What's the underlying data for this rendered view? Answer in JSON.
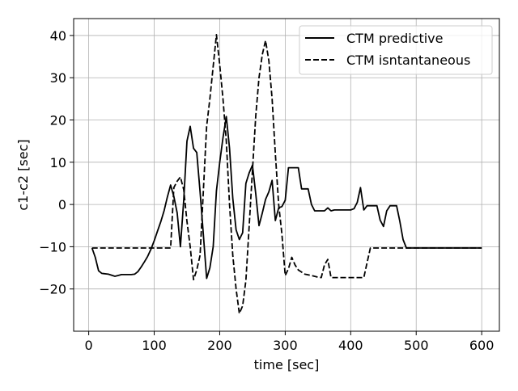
{
  "chart_data": {
    "type": "line",
    "title": "",
    "xlabel": "time [sec]",
    "ylabel": "c1-c2 [sec]",
    "xlim": [
      -23,
      627
    ],
    "ylim": [
      -30,
      44
    ],
    "xticks": [
      0,
      100,
      200,
      300,
      400,
      500,
      600
    ],
    "yticks": [
      -20,
      -10,
      0,
      10,
      20,
      30,
      40
    ],
    "xtick_labels": [
      "0",
      "100",
      "200",
      "300",
      "400",
      "500",
      "600"
    ],
    "ytick_labels": [
      "−20",
      "−10",
      "0",
      "10",
      "20",
      "30",
      "40"
    ],
    "grid": true,
    "legend_position": "top-right",
    "series": [
      {
        "name": "CTM predictive",
        "style": "solid",
        "color": "#000000",
        "x": [
          5,
          10,
          15,
          20,
          30,
          40,
          45,
          50,
          55,
          60,
          65,
          70,
          75,
          80,
          85,
          90,
          95,
          100,
          105,
          110,
          115,
          120,
          125,
          130,
          135,
          140,
          145,
          150,
          155,
          160,
          165,
          170,
          175,
          180,
          185,
          190,
          195,
          200,
          205,
          210,
          215,
          220,
          225,
          230,
          235,
          240,
          245,
          250,
          255,
          260,
          265,
          270,
          275,
          280,
          285,
          290,
          295,
          300,
          305,
          310,
          315,
          320,
          325,
          330,
          335,
          340,
          345,
          350,
          355,
          360,
          365,
          370,
          375,
          380,
          385,
          390,
          395,
          400,
          405,
          410,
          415,
          420,
          425,
          430,
          435,
          440,
          445,
          450,
          455,
          460,
          465,
          470,
          475,
          480,
          485,
          490,
          495,
          500,
          550,
          600
        ],
        "y": [
          -10.3,
          -12.5,
          -15.7,
          -16.3,
          -16.5,
          -17,
          -16.8,
          -16.6,
          -16.6,
          -16.6,
          -16.6,
          -16.5,
          -15.9,
          -14.8,
          -13.6,
          -12.3,
          -10.6,
          -8.6,
          -6.3,
          -4.1,
          -1.5,
          1.7,
          4.6,
          1.9,
          -2,
          -10,
          1,
          15,
          18.5,
          13.3,
          12.3,
          3,
          -7,
          -17.5,
          -15,
          -10,
          3.2,
          10,
          15.8,
          20.8,
          13.3,
          1.5,
          -6,
          -8.3,
          -6.7,
          5,
          7.5,
          9.3,
          2.5,
          -5,
          -2,
          1.2,
          3,
          5.7,
          -3.8,
          -0.8,
          -0.5,
          1,
          8.7,
          8.7,
          8.7,
          8.7,
          3.7,
          3.7,
          3.7,
          0,
          -1.5,
          -1.5,
          -1.5,
          -1.5,
          -0.8,
          -1.5,
          -1.3,
          -1.3,
          -1.3,
          -1.3,
          -1.3,
          -1.3,
          -1,
          0.5,
          4,
          -1.3,
          -0.3,
          -0.3,
          -0.3,
          -0.3,
          -3.7,
          -5.2,
          -1.5,
          -0.3,
          -0.3,
          -0.3,
          -4,
          -8.3,
          -10.3,
          -10.3,
          -10.3,
          -10.3,
          -10.3,
          -10.3
        ]
      },
      {
        "name": "CTM isntantaneous",
        "style": "dashed",
        "color": "#000000",
        "x": [
          5,
          50,
          85,
          95,
          105,
          115,
          125,
          130,
          135,
          140,
          145,
          150,
          155,
          160,
          165,
          170,
          175,
          180,
          185,
          195,
          200,
          205,
          210,
          215,
          220,
          225,
          230,
          235,
          240,
          245,
          250,
          255,
          260,
          265,
          270,
          275,
          280,
          285,
          290,
          295,
          300,
          305,
          310,
          315,
          320,
          325,
          330,
          340,
          350,
          355,
          360,
          365,
          370,
          380,
          400,
          420,
          425,
          430,
          440,
          500,
          600
        ],
        "y": [
          -10.3,
          -10.3,
          -10.3,
          -10.3,
          -10.3,
          -10.3,
          -10.3,
          4,
          5.5,
          6.5,
          3.5,
          -4,
          -10,
          -17.8,
          -15.5,
          -12,
          3,
          18.5,
          25,
          40.2,
          33,
          25,
          15,
          0,
          -12,
          -20,
          -25.8,
          -24,
          -18,
          -5,
          8,
          21,
          30,
          35.5,
          38.8,
          34,
          25,
          12,
          0,
          -7,
          -16.8,
          -15.2,
          -12.5,
          -14.3,
          -15.5,
          -16,
          -16.5,
          -16.8,
          -17.2,
          -17.3,
          -14.3,
          -13,
          -17.3,
          -17.3,
          -17.3,
          -17.3,
          -13.8,
          -10.3,
          -10.3,
          -10.3,
          -10.3
        ]
      }
    ]
  }
}
